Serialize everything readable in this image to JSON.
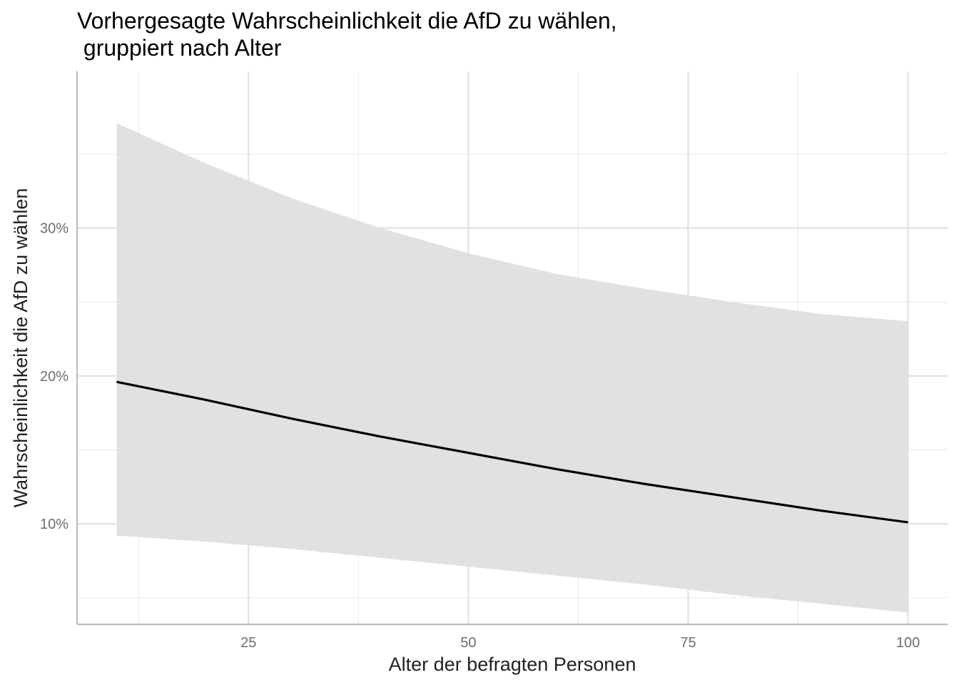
{
  "chart_data": {
    "type": "line",
    "title_line1": "Vorhergesagte Wahrscheinlichkeit die AfD zu wählen,",
    "title_line2": " gruppiert nach Alter",
    "xlabel": "Alter der befragten Personen",
    "ylabel": "Wahrscheinlichkeit die AfD zu wählen",
    "xlim": [
      5.5,
      104.5
    ],
    "ylim": [
      3.2,
      40.6
    ],
    "x_ticks": [
      25,
      50,
      75,
      100
    ],
    "x_tick_labels": [
      "25",
      "50",
      "75",
      "100"
    ],
    "y_ticks": [
      10,
      20,
      30
    ],
    "y_tick_labels": [
      "10%",
      "20%",
      "30%"
    ],
    "x_minor_grid": [
      12.5,
      37.5,
      62.5,
      87.5
    ],
    "y_minor_grid": [
      5,
      15,
      25,
      35
    ],
    "grid": true,
    "legend": "none",
    "series": [
      {
        "type": "line",
        "color": "#000000",
        "x": [
          10,
          20,
          30,
          40,
          50,
          60,
          70,
          80,
          90,
          100
        ],
        "y": [
          19.6,
          18.4,
          17.1,
          15.9,
          14.8,
          13.7,
          12.7,
          11.8,
          10.9,
          10.1
        ]
      },
      {
        "type": "ribbon",
        "color": "#dfdfdf",
        "x": [
          10,
          20,
          30,
          40,
          50,
          60,
          70,
          80,
          90,
          100
        ],
        "lower": [
          9.2,
          8.8,
          8.3,
          7.7,
          7.1,
          6.5,
          5.9,
          5.2,
          4.6,
          4.0
        ],
        "upper": [
          37.1,
          34.4,
          32.0,
          30.0,
          28.3,
          26.9,
          25.9,
          25.0,
          24.2,
          23.7
        ]
      }
    ]
  }
}
